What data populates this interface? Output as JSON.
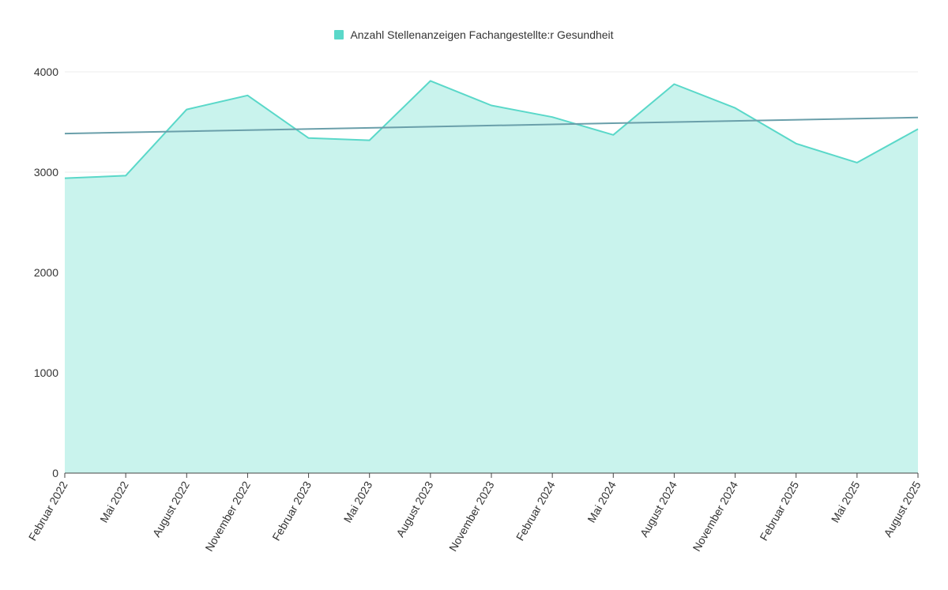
{
  "chart_data": {
    "type": "area",
    "categories": [
      "Februar 2022",
      "Mai 2022",
      "August 2022",
      "November 2022",
      "Februar 2023",
      "Mai 2023",
      "August 2023",
      "November 2023",
      "Februar 2024",
      "Mai 2024",
      "August 2024",
      "November 2024",
      "Februar 2025",
      "Mai 2025",
      "August 2025"
    ],
    "series": [
      {
        "name": "Anzahl Stellenanzeigen Fachangestellte:r Gesundheit",
        "values": [
          2940,
          2965,
          3625,
          3765,
          3340,
          3318,
          3910,
          3665,
          3550,
          3372,
          3878,
          3640,
          3285,
          3095,
          3430
        ]
      }
    ],
    "trendline": {
      "start": 3385,
      "end": 3545
    },
    "ylim": [
      0,
      4000
    ],
    "yticks": [
      0,
      1000,
      2000,
      3000,
      4000
    ],
    "legend_position": "top-center",
    "grid": true,
    "colors": {
      "line": "#5ad8c9",
      "fill": "#c9f3ed",
      "trend": "#6a9faa",
      "grid": "#eeeeee",
      "axis": "#444444"
    }
  }
}
